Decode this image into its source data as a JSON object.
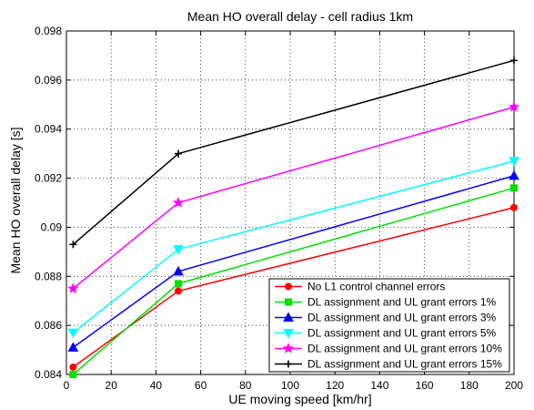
{
  "chart_data": {
    "type": "line",
    "title": "Mean HO overall delay - cell radius 1km",
    "xlabel": "UE moving speed [km/hr]",
    "ylabel": "Mean HO overall delay [s]",
    "xlim": [
      0,
      200
    ],
    "ylim": [
      0.084,
      0.098
    ],
    "x_ticks": [
      0,
      20,
      40,
      60,
      80,
      100,
      120,
      140,
      160,
      180,
      200
    ],
    "y_ticks": [
      0.084,
      0.086,
      0.088,
      0.09,
      0.092,
      0.094,
      0.096,
      0.098
    ],
    "y_tick_labels": [
      "0.084",
      "0.086",
      "0.088",
      "0.09",
      "0.092",
      "0.094",
      "0.096",
      "0.098"
    ],
    "grid": true,
    "legend_position": "bottom-right",
    "x": [
      3,
      50,
      200
    ],
    "series": [
      {
        "name": "No L1 control channel errors",
        "values": [
          0.0843,
          0.0874,
          0.0908
        ],
        "color": "#ff0000",
        "marker": "circle"
      },
      {
        "name": "DL assignment and UL grant errors 1%",
        "values": [
          0.084,
          0.0877,
          0.0916
        ],
        "color": "#00e000",
        "marker": "square"
      },
      {
        "name": "DL assignment and UL grant errors 3%",
        "values": [
          0.0851,
          0.0882,
          0.0921
        ],
        "color": "#0000ff",
        "marker": "triangle-up"
      },
      {
        "name": "DL assignment and UL grant errors 5%",
        "values": [
          0.0857,
          0.0891,
          0.0927
        ],
        "color": "#00ffff",
        "marker": "triangle-down"
      },
      {
        "name": "DL assignment and UL grant errors 10%",
        "values": [
          0.0875,
          0.091,
          0.0949
        ],
        "color": "#ff00ff",
        "marker": "star"
      },
      {
        "name": "DL assignment and UL grant errors 15%",
        "values": [
          0.0893,
          0.093,
          0.0968
        ],
        "color": "#000000",
        "marker": "plus"
      }
    ]
  }
}
